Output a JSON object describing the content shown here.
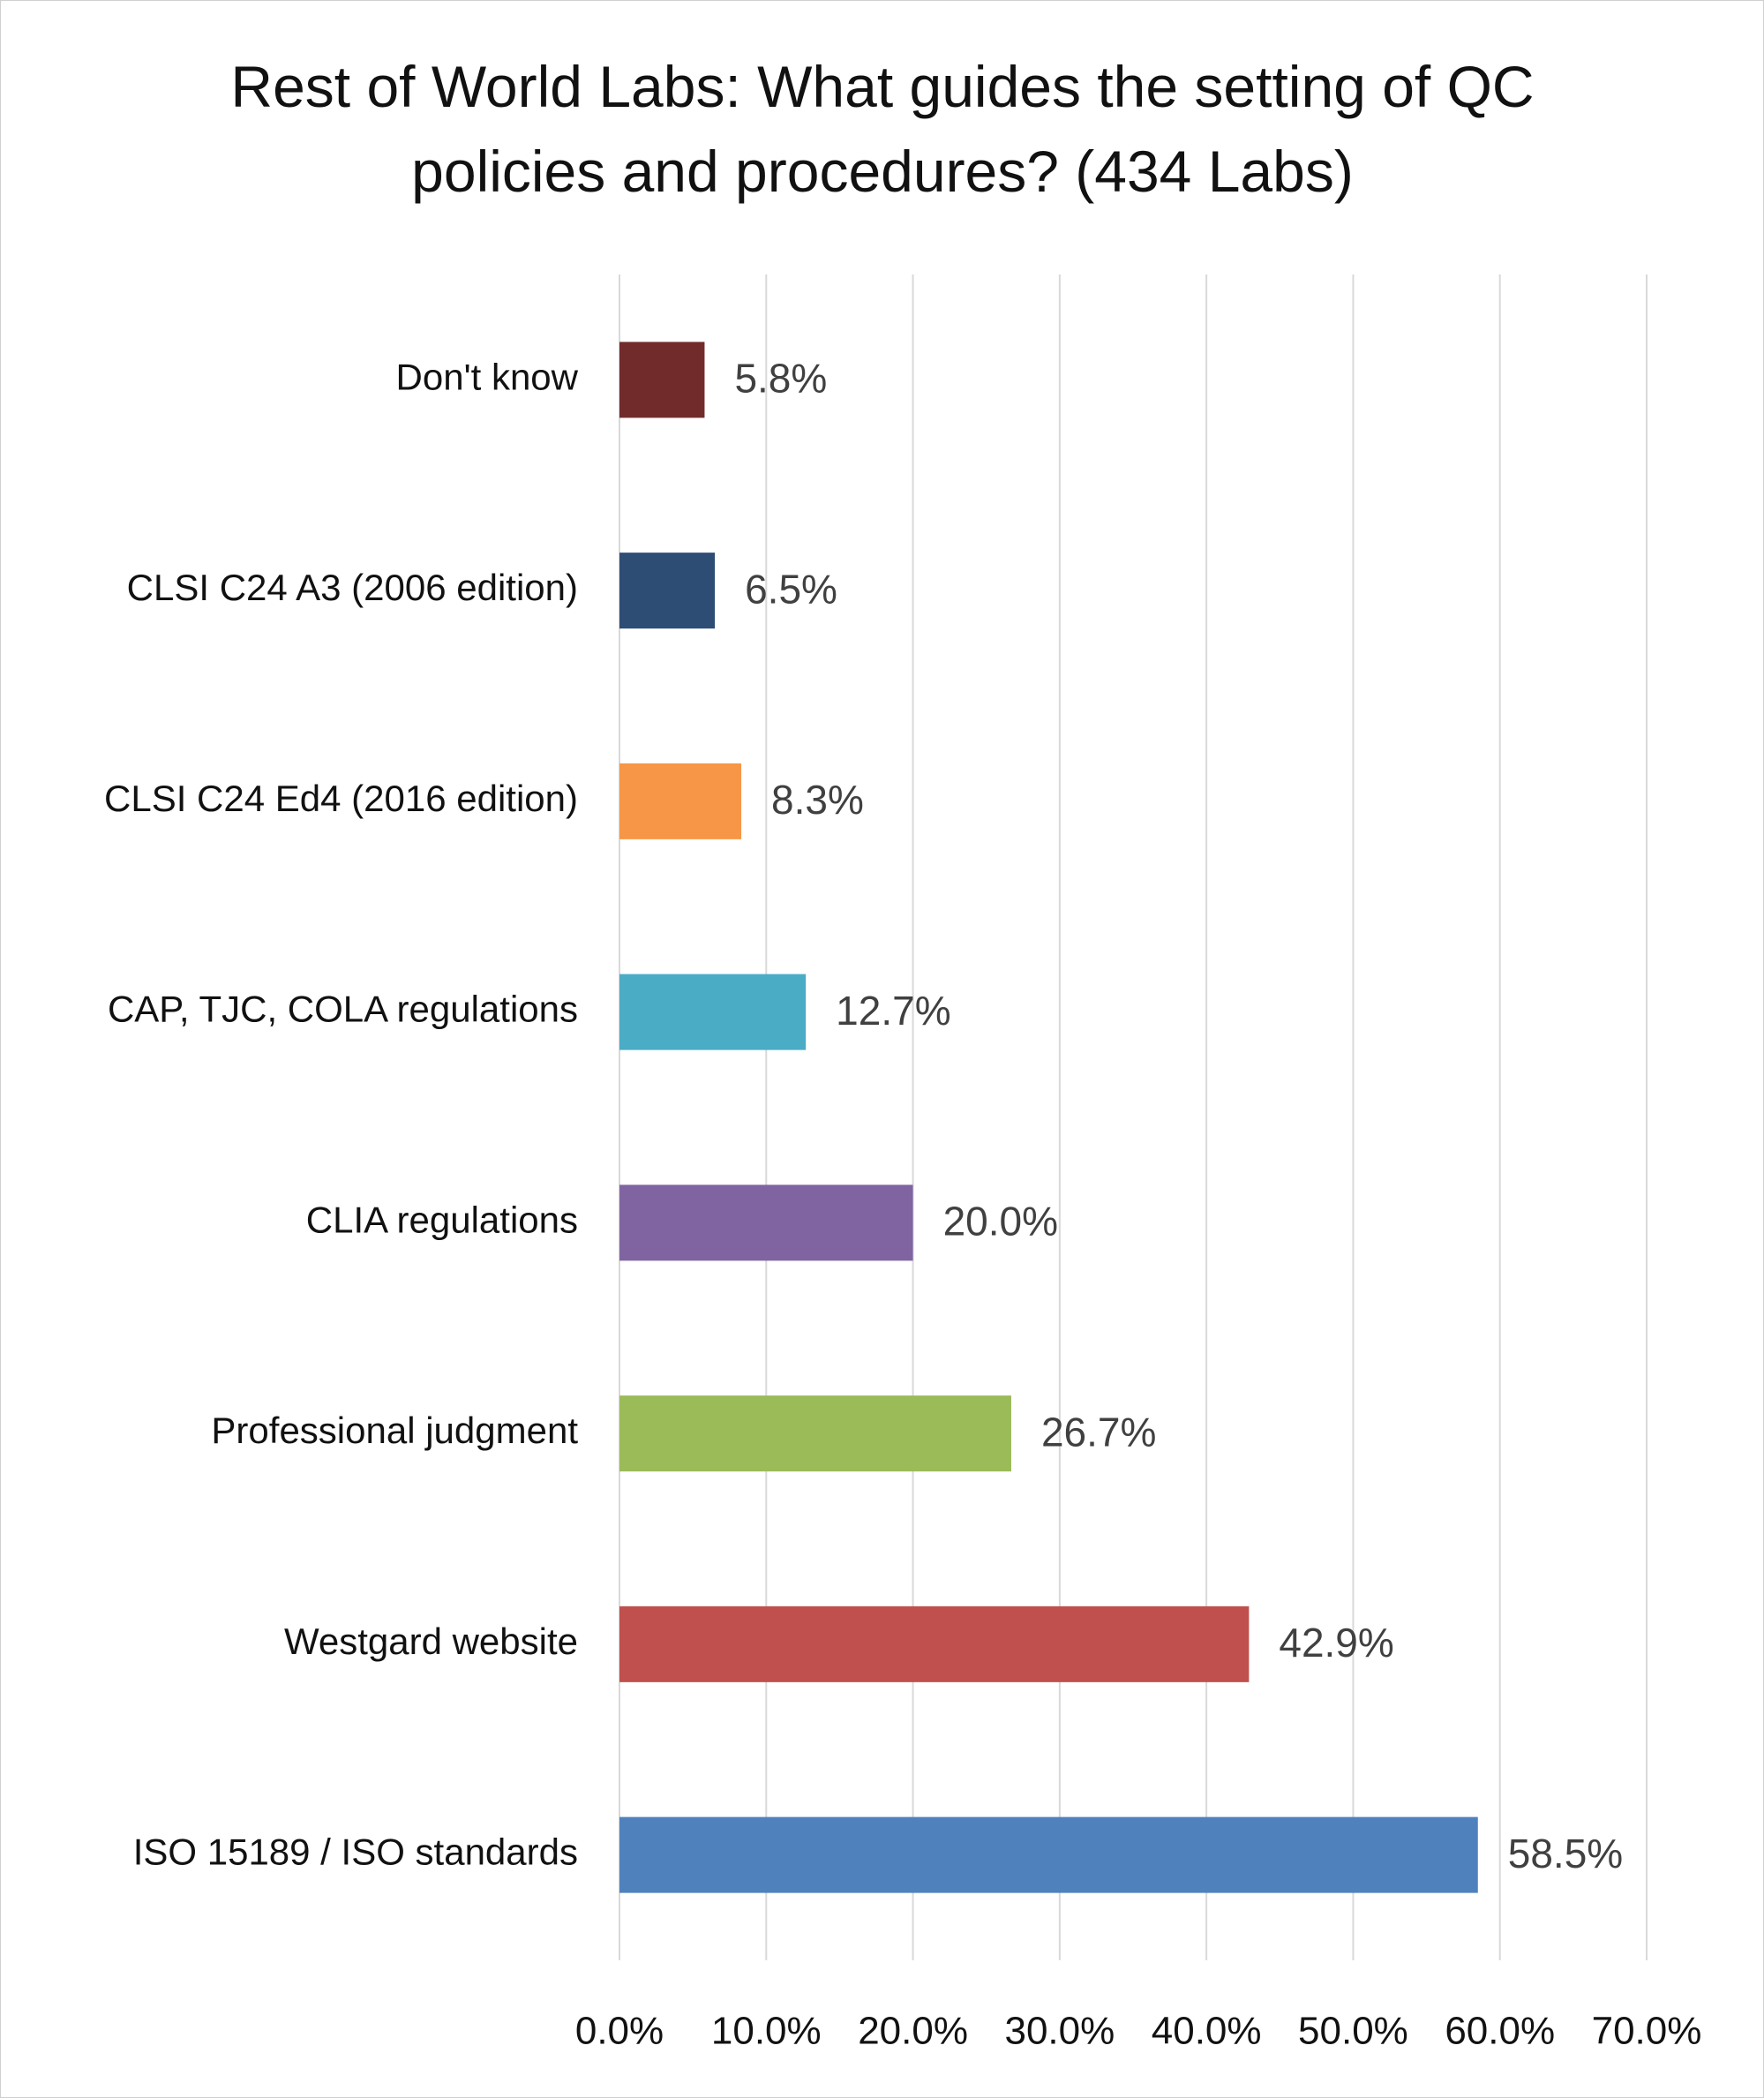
{
  "chart_data": {
    "type": "bar",
    "orientation": "horizontal",
    "title": "Rest of World Labs: What guides the setting of QC policies and procedures? (434 Labs)",
    "categories": [
      "Don't know",
      "CLSI C24 A3 (2006 edition)",
      "CLSI C24 Ed4 (2016 edition)",
      "CAP, TJC, COLA regulations",
      "CLIA regulations",
      "Professional judgment",
      "Westgard website",
      "ISO 15189 / ISO standards"
    ],
    "values": [
      5.8,
      6.5,
      8.3,
      12.7,
      20.0,
      26.7,
      42.9,
      58.5
    ],
    "value_labels": [
      "5.8%",
      "6.5%",
      "8.3%",
      "12.7%",
      "20.0%",
      "26.7%",
      "42.9%",
      "58.5%"
    ],
    "colors": [
      "#722b2b",
      "#2e4d75",
      "#f79646",
      "#4bacc6",
      "#8064a2",
      "#9bbb59",
      "#c0504d",
      "#4f81bd"
    ],
    "xlim": [
      0,
      70
    ],
    "xticks": [
      {
        "value": 0,
        "label": "0.0%"
      },
      {
        "value": 10,
        "label": "10.0%"
      },
      {
        "value": 20,
        "label": "20.0%"
      },
      {
        "value": 30,
        "label": "30.0%"
      },
      {
        "value": 40,
        "label": "40.0%"
      },
      {
        "value": 50,
        "label": "50.0%"
      },
      {
        "value": 60,
        "label": "60.0%"
      },
      {
        "value": 70,
        "label": "70.0%"
      }
    ],
    "grid": true
  }
}
